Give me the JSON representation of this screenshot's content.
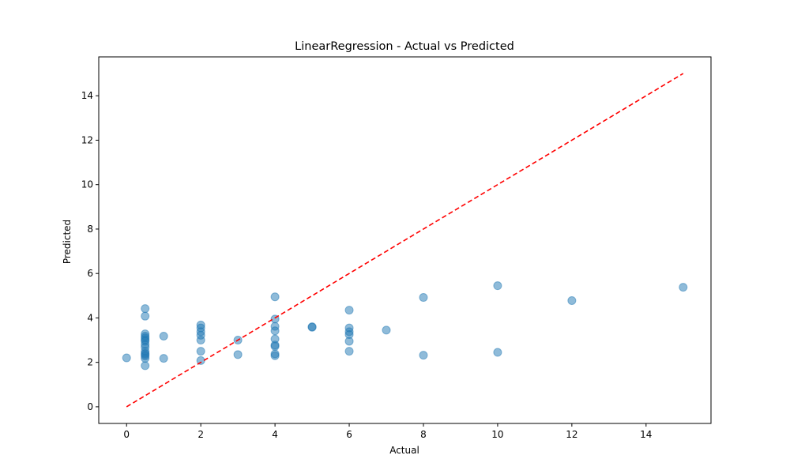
{
  "chart_data": {
    "type": "scatter",
    "title": "LinearRegression - Actual vs Predicted",
    "xlabel": "Actual",
    "ylabel": "Predicted",
    "xlim": [
      -0.75,
      15.75
    ],
    "ylim": [
      -0.75,
      15.75
    ],
    "xticks": [
      0,
      2,
      4,
      6,
      8,
      10,
      12,
      14
    ],
    "yticks": [
      0,
      2,
      4,
      6,
      8,
      10,
      12,
      14
    ],
    "grid": false,
    "series": [
      {
        "kind": "points",
        "color": "#1f77b4",
        "opacity": 0.5,
        "points": [
          {
            "x": 0,
            "y": 2.2
          },
          {
            "x": 0.5,
            "y": 4.42
          },
          {
            "x": 0.5,
            "y": 4.08
          },
          {
            "x": 0.5,
            "y": 3.28
          },
          {
            "x": 0.5,
            "y": 3.18
          },
          {
            "x": 0.5,
            "y": 3.1
          },
          {
            "x": 0.5,
            "y": 3.02
          },
          {
            "x": 0.5,
            "y": 2.95
          },
          {
            "x": 0.5,
            "y": 2.8
          },
          {
            "x": 0.5,
            "y": 2.68
          },
          {
            "x": 0.5,
            "y": 2.5
          },
          {
            "x": 0.5,
            "y": 2.4
          },
          {
            "x": 0.5,
            "y": 2.35
          },
          {
            "x": 0.5,
            "y": 2.28
          },
          {
            "x": 0.5,
            "y": 2.18
          },
          {
            "x": 0.5,
            "y": 1.85
          },
          {
            "x": 1,
            "y": 3.18
          },
          {
            "x": 1,
            "y": 2.18
          },
          {
            "x": 2,
            "y": 3.68
          },
          {
            "x": 2,
            "y": 3.55
          },
          {
            "x": 2,
            "y": 3.38
          },
          {
            "x": 2,
            "y": 3.22
          },
          {
            "x": 2,
            "y": 3.0
          },
          {
            "x": 2,
            "y": 2.5
          },
          {
            "x": 2,
            "y": 2.08
          },
          {
            "x": 3,
            "y": 3.0
          },
          {
            "x": 3,
            "y": 2.35
          },
          {
            "x": 4,
            "y": 4.95
          },
          {
            "x": 4,
            "y": 3.95
          },
          {
            "x": 4,
            "y": 3.62
          },
          {
            "x": 4,
            "y": 3.42
          },
          {
            "x": 4,
            "y": 3.05
          },
          {
            "x": 4,
            "y": 2.78
          },
          {
            "x": 4,
            "y": 2.72
          },
          {
            "x": 4,
            "y": 2.38
          },
          {
            "x": 4,
            "y": 2.3
          },
          {
            "x": 5,
            "y": 3.6
          },
          {
            "x": 5,
            "y": 3.58
          },
          {
            "x": 6,
            "y": 4.35
          },
          {
            "x": 6,
            "y": 3.55
          },
          {
            "x": 6,
            "y": 3.38
          },
          {
            "x": 6,
            "y": 3.25
          },
          {
            "x": 6,
            "y": 2.95
          },
          {
            "x": 6,
            "y": 2.5
          },
          {
            "x": 7,
            "y": 3.45
          },
          {
            "x": 8,
            "y": 4.92
          },
          {
            "x": 8,
            "y": 2.32
          },
          {
            "x": 10,
            "y": 5.45
          },
          {
            "x": 10,
            "y": 2.45
          },
          {
            "x": 12,
            "y": 4.78
          },
          {
            "x": 15,
            "y": 5.38
          }
        ]
      },
      {
        "kind": "reference-line",
        "color": "#ff0000",
        "style": "dashed",
        "points": [
          {
            "x": 0,
            "y": 0
          },
          {
            "x": 15,
            "y": 15
          }
        ]
      }
    ]
  }
}
